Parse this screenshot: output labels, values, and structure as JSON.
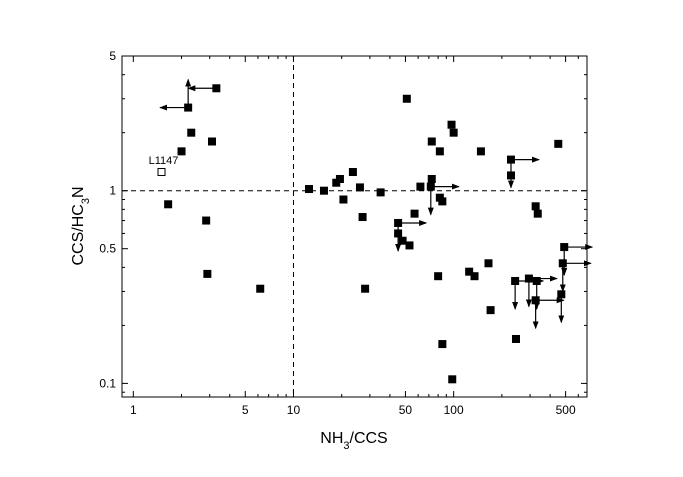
{
  "chart_data": {
    "type": "scatter",
    "title": "",
    "xlabel": "NH₃/CCS",
    "ylabel": "CCS/HC₃N",
    "xscale": "log",
    "yscale": "log",
    "xlim": [
      0.85,
      680
    ],
    "ylim": [
      0.085,
      5
    ],
    "xticks": [
      {
        "value": 1,
        "label": "1"
      },
      {
        "value": 5,
        "label": "5"
      },
      {
        "value": 10,
        "label": "10"
      },
      {
        "value": 50,
        "label": "50"
      },
      {
        "value": 100,
        "label": "100"
      },
      {
        "value": 500,
        "label": "500"
      }
    ],
    "yticks": [
      {
        "value": 0.1,
        "label": "0.1"
      },
      {
        "value": 0.5,
        "label": "0.5"
      },
      {
        "value": 1,
        "label": "1"
      },
      {
        "value": 5,
        "label": "5"
      }
    ],
    "grid": false,
    "reference_lines": [
      {
        "axis": "x",
        "value": 10,
        "style": "dashed"
      },
      {
        "axis": "y",
        "value": 1,
        "style": "dashed"
      }
    ],
    "annotations": [
      {
        "text": "L1147",
        "x": 1.5,
        "y": 1.25
      }
    ],
    "series": [
      {
        "marker": "filled-square",
        "points": [
          {
            "x": 2.2,
            "y": 2.7,
            "arrows": [
              "up",
              "left"
            ]
          },
          {
            "x": 3.3,
            "y": 3.4,
            "arrows": [
              "left"
            ]
          },
          {
            "x": 2.3,
            "y": 2.0
          },
          {
            "x": 3.1,
            "y": 1.8
          },
          {
            "x": 2.0,
            "y": 1.6
          },
          {
            "x": 1.65,
            "y": 0.85
          },
          {
            "x": 2.85,
            "y": 0.7
          },
          {
            "x": 2.9,
            "y": 0.37
          },
          {
            "x": 6.2,
            "y": 0.31
          },
          {
            "x": 12.5,
            "y": 1.02
          },
          {
            "x": 15.5,
            "y": 1.0
          },
          {
            "x": 18.5,
            "y": 1.1
          },
          {
            "x": 19.5,
            "y": 1.15
          },
          {
            "x": 20.5,
            "y": 0.9
          },
          {
            "x": 23.5,
            "y": 1.25
          },
          {
            "x": 26,
            "y": 1.04
          },
          {
            "x": 27,
            "y": 0.73
          },
          {
            "x": 28,
            "y": 0.31
          },
          {
            "x": 35,
            "y": 0.98
          },
          {
            "x": 51,
            "y": 3.0
          },
          {
            "x": 45,
            "y": 0.68,
            "arrows": [
              "right",
              "down"
            ]
          },
          {
            "x": 45,
            "y": 0.6
          },
          {
            "x": 48,
            "y": 0.55
          },
          {
            "x": 53,
            "y": 0.52
          },
          {
            "x": 57,
            "y": 0.76
          },
          {
            "x": 62,
            "y": 1.05
          },
          {
            "x": 72,
            "y": 1.05,
            "arrows": [
              "right",
              "down"
            ]
          },
          {
            "x": 73,
            "y": 1.15
          },
          {
            "x": 73,
            "y": 1.8
          },
          {
            "x": 80,
            "y": 0.36
          },
          {
            "x": 82,
            "y": 1.6
          },
          {
            "x": 82,
            "y": 0.92
          },
          {
            "x": 85,
            "y": 0.88
          },
          {
            "x": 85,
            "y": 0.16
          },
          {
            "x": 97,
            "y": 2.2
          },
          {
            "x": 100,
            "y": 2.0
          },
          {
            "x": 98,
            "y": 0.105
          },
          {
            "x": 125,
            "y": 0.38
          },
          {
            "x": 135,
            "y": 0.36
          },
          {
            "x": 148,
            "y": 1.6
          },
          {
            "x": 165,
            "y": 0.42
          },
          {
            "x": 170,
            "y": 0.24
          },
          {
            "x": 228,
            "y": 1.45,
            "arrows": [
              "right",
              "down"
            ]
          },
          {
            "x": 228,
            "y": 1.2
          },
          {
            "x": 242,
            "y": 0.34,
            "arrows": [
              "right",
              "down"
            ]
          },
          {
            "x": 245,
            "y": 0.17
          },
          {
            "x": 295,
            "y": 0.35,
            "arrows": [
              "right",
              "down"
            ]
          },
          {
            "x": 330,
            "y": 0.34,
            "arrows": [
              "down"
            ]
          },
          {
            "x": 325,
            "y": 0.27,
            "arrows": [
              "right",
              "down"
            ]
          },
          {
            "x": 325,
            "y": 0.83
          },
          {
            "x": 335,
            "y": 0.76
          },
          {
            "x": 450,
            "y": 1.75
          },
          {
            "x": 490,
            "y": 0.51,
            "arrows": [
              "right",
              "down"
            ]
          },
          {
            "x": 480,
            "y": 0.42,
            "arrows": [
              "right",
              "down"
            ]
          },
          {
            "x": 470,
            "y": 0.29,
            "arrows": [
              "down"
            ]
          }
        ]
      },
      {
        "marker": "open-square",
        "points": [
          {
            "x": 1.5,
            "y": 1.25
          }
        ]
      }
    ]
  }
}
